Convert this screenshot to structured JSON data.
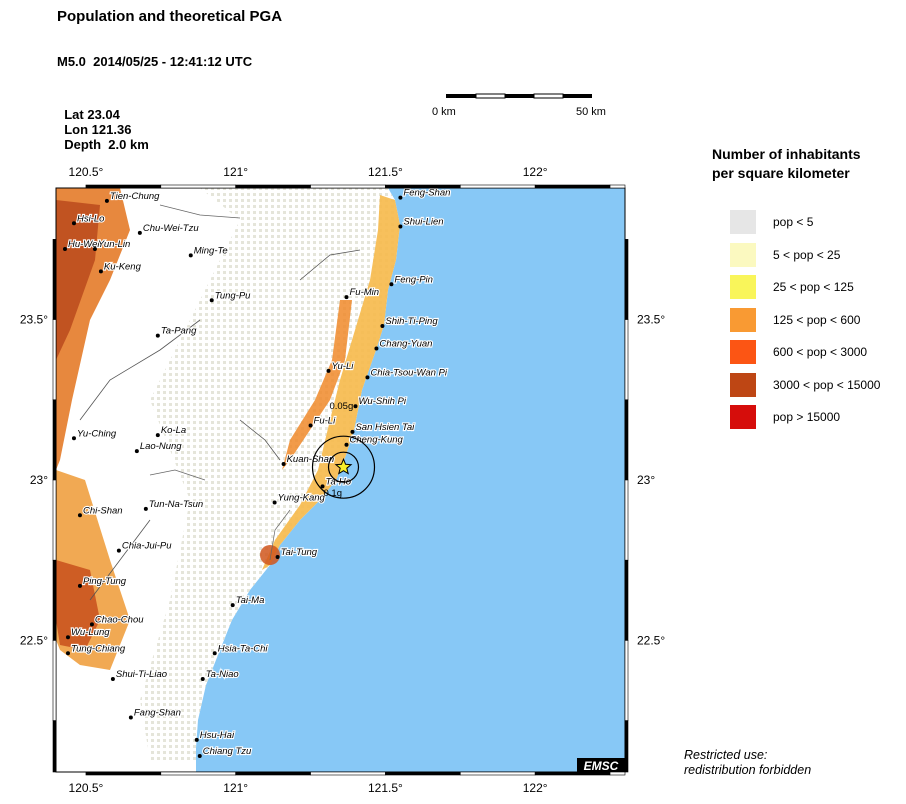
{
  "header": {
    "title": "Population and theoretical PGA",
    "event_line": "M5.0  2014/05/25 - 12:41:12 UTC",
    "lat": "Lat 23.04",
    "lon": "Lon 121.36",
    "depth": "Depth  2.0 km"
  },
  "scale_bar": {
    "left_label": "0 km",
    "right_label": "50 km",
    "length_km": 50
  },
  "map": {
    "lon_range": [
      120.4,
      122.3
    ],
    "lat_range": [
      22.09,
      23.91
    ],
    "x_ticks": [
      {
        "value": 120.5,
        "label": "120.5°"
      },
      {
        "value": 121.0,
        "label": "121°"
      },
      {
        "value": 121.5,
        "label": "121.5°"
      },
      {
        "value": 122.0,
        "label": "122°"
      }
    ],
    "y_ticks": [
      {
        "value": 23.5,
        "label": "23.5°"
      },
      {
        "value": 23.0,
        "label": "23°"
      },
      {
        "value": 22.5,
        "label": "22.5°"
      }
    ],
    "colors": {
      "sea": "#87c8f6",
      "land": "#ffffff",
      "low_pop": "#e6e6dc"
    },
    "epicenter": {
      "lon": 121.36,
      "lat": 23.04
    },
    "pga_labels": [
      {
        "text": "0.05g",
        "lon": 121.38,
        "lat": 23.23
      },
      {
        "text": "0.1g",
        "lon": 121.36,
        "lat": 22.96
      }
    ],
    "logo": "EMSC",
    "cities": [
      {
        "name": "Tien-Chung",
        "lon": 120.57,
        "lat": 23.87
      },
      {
        "name": "Hsi-Lo",
        "lon": 120.46,
        "lat": 23.8
      },
      {
        "name": "Chu-Wei-Tzu",
        "lon": 120.68,
        "lat": 23.77
      },
      {
        "name": "Hu-Wei",
        "lon": 120.43,
        "lat": 23.72
      },
      {
        "name": "Yun-Lin",
        "lon": 120.53,
        "lat": 23.72
      },
      {
        "name": "Ming-Te",
        "lon": 120.85,
        "lat": 23.7
      },
      {
        "name": "Ku-Keng",
        "lon": 120.55,
        "lat": 23.65
      },
      {
        "name": "Tung-Pu",
        "lon": 120.92,
        "lat": 23.56
      },
      {
        "name": "Ta-Pang",
        "lon": 120.74,
        "lat": 23.45
      },
      {
        "name": "Yu-Ching",
        "lon": 120.46,
        "lat": 23.13
      },
      {
        "name": "Ko-La",
        "lon": 120.74,
        "lat": 23.14
      },
      {
        "name": "Lao-Nung",
        "lon": 120.67,
        "lat": 23.09
      },
      {
        "name": "Tun-Na-Tsun",
        "lon": 120.7,
        "lat": 22.91
      },
      {
        "name": "Chi-Shan",
        "lon": 120.48,
        "lat": 22.89
      },
      {
        "name": "Chia-Jui-Pu",
        "lon": 120.61,
        "lat": 22.78
      },
      {
        "name": "Ping-Tung",
        "lon": 120.48,
        "lat": 22.67
      },
      {
        "name": "Chao-Chou",
        "lon": 120.52,
        "lat": 22.55
      },
      {
        "name": "Wu-Lung",
        "lon": 120.44,
        "lat": 22.51
      },
      {
        "name": "Tung-Chiang",
        "lon": 120.44,
        "lat": 22.46
      },
      {
        "name": "Shui-Ti-Liao",
        "lon": 120.59,
        "lat": 22.38
      },
      {
        "name": "Fang-Shan",
        "lon": 120.65,
        "lat": 22.26
      },
      {
        "name": "Hsu-Hai",
        "lon": 120.87,
        "lat": 22.19
      },
      {
        "name": "Chiang Tzu",
        "lon": 120.88,
        "lat": 22.14
      },
      {
        "name": "Ta-Niao",
        "lon": 120.89,
        "lat": 22.38
      },
      {
        "name": "Hsia-Ta-Chi",
        "lon": 120.93,
        "lat": 22.46
      },
      {
        "name": "Tai-Ma",
        "lon": 120.99,
        "lat": 22.61
      },
      {
        "name": "Tai-Tung",
        "lon": 121.14,
        "lat": 22.76
      },
      {
        "name": "Yung-Kang",
        "lon": 121.13,
        "lat": 22.93
      },
      {
        "name": "Kuan-Shan",
        "lon": 121.16,
        "lat": 23.05
      },
      {
        "name": "Ta-Ho",
        "lon": 121.29,
        "lat": 22.98
      },
      {
        "name": "Fu-Li",
        "lon": 121.25,
        "lat": 23.17
      },
      {
        "name": "Cheng-Kung",
        "lon": 121.37,
        "lat": 23.11
      },
      {
        "name": "San Hsien Tai",
        "lon": 121.39,
        "lat": 23.15
      },
      {
        "name": "Wu-Shih Pi",
        "lon": 121.4,
        "lat": 23.23
      },
      {
        "name": "Chia-Tsou-Wan Pi",
        "lon": 121.44,
        "lat": 23.32
      },
      {
        "name": "Yu-Li",
        "lon": 121.31,
        "lat": 23.34
      },
      {
        "name": "Chang-Yuan",
        "lon": 121.47,
        "lat": 23.41
      },
      {
        "name": "Shih-Ti-Ping",
        "lon": 121.49,
        "lat": 23.48
      },
      {
        "name": "Fu-Min",
        "lon": 121.37,
        "lat": 23.57
      },
      {
        "name": "Feng-Pin",
        "lon": 121.52,
        "lat": 23.61
      },
      {
        "name": "Shui-Lien",
        "lon": 121.55,
        "lat": 23.79
      },
      {
        "name": "Feng-Shan",
        "lon": 121.55,
        "lat": 23.88
      }
    ]
  },
  "legend": {
    "title_line1": "Number of inhabitants",
    "title_line2": "per square kilometer",
    "items": [
      {
        "label": "pop < 5",
        "color": "#e6e6e6"
      },
      {
        "label": "5 < pop < 25",
        "color": "#fbf9c0"
      },
      {
        "label": "25 < pop < 125",
        "color": "#f9f55a"
      },
      {
        "label": "125 < pop < 600",
        "color": "#f99a33"
      },
      {
        "label": "600 < pop < 3000",
        "color": "#fc5514"
      },
      {
        "label": "3000 < pop < 15000",
        "color": "#be4614"
      },
      {
        "label": "pop > 15000",
        "color": "#d60d0b"
      }
    ]
  },
  "notice": {
    "line1": "Restricted use:",
    "line2": "redistribution forbidden"
  }
}
